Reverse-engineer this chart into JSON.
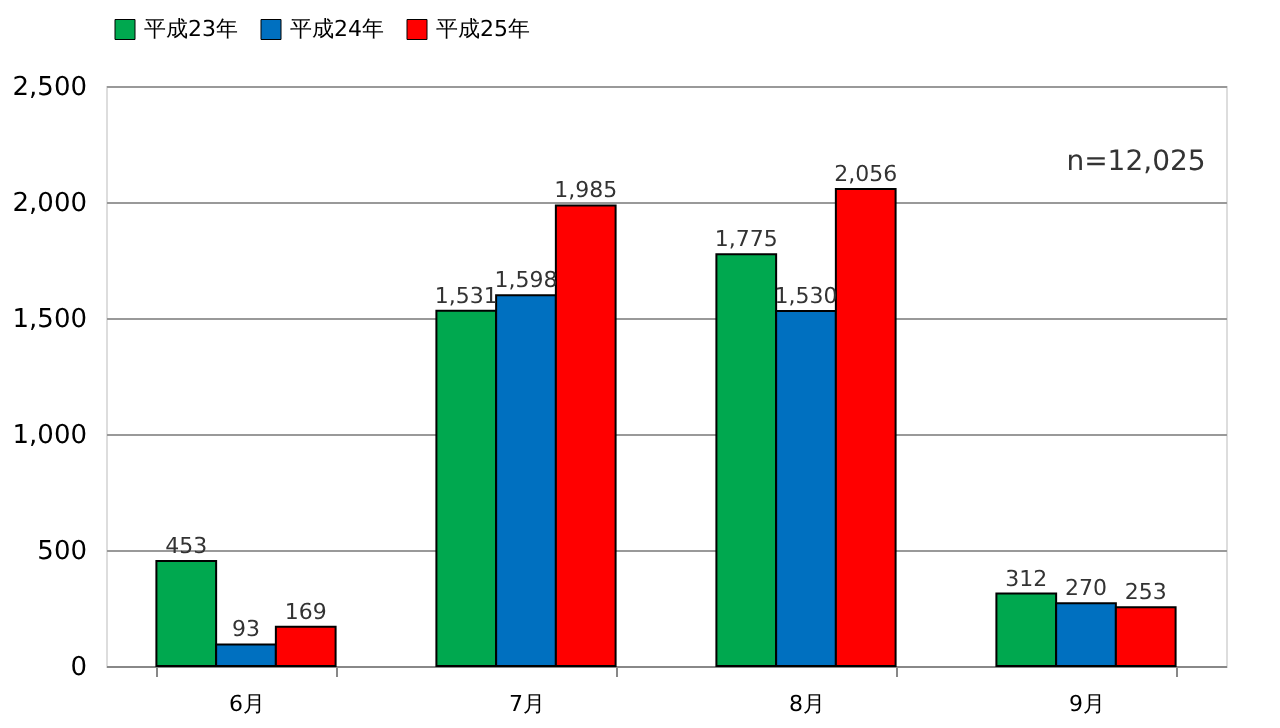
{
  "chart_data": {
    "type": "bar",
    "categories": [
      "6月",
      "7月",
      "8月",
      "9月"
    ],
    "series": [
      {
        "name": "平成23年",
        "color": "#00a84f",
        "values": [
          453,
          1531,
          1775,
          312
        ],
        "value_labels": [
          "453",
          "1,531",
          "1,775",
          "312"
        ]
      },
      {
        "name": "平成24年",
        "color": "#0070c0",
        "values": [
          93,
          1598,
          1530,
          270
        ],
        "value_labels": [
          "93",
          "1,598",
          "1,530",
          "270"
        ]
      },
      {
        "name": "平成25年",
        "color": "#ff0000",
        "values": [
          169,
          1985,
          2056,
          253
        ],
        "value_labels": [
          "169",
          "1,985",
          "2,056",
          "253"
        ]
      }
    ],
    "ylim": [
      0,
      2500
    ],
    "yticks": [
      0,
      500,
      {
        "value": 1000,
        "label": "1,000"
      },
      {
        "value": 1500,
        "label": "1,500"
      },
      {
        "value": 2000,
        "label": "2,000"
      },
      {
        "value": 2500,
        "label": "2,500"
      }
    ],
    "grid": "y",
    "legend": "top",
    "annotations": [
      "n=12,025"
    ]
  }
}
